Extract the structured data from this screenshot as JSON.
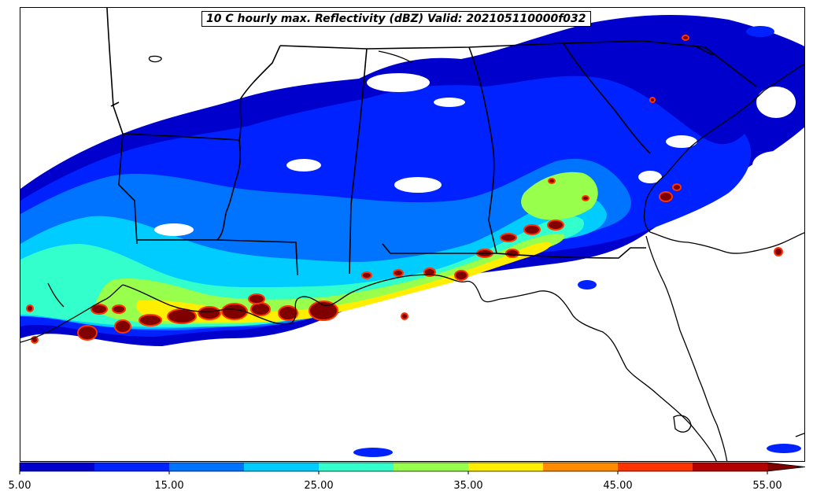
{
  "map": {
    "title": "10 C hourly max. Reflectivity (dBZ) Valid: 202105110000f032",
    "field": "reflectivity",
    "units": "dBZ",
    "region": "Southeastern United States and northern Gulf of Mexico",
    "basemap_features": [
      "coastlines",
      "state-borders"
    ]
  },
  "colorbar": {
    "extend": "max",
    "bins": [
      {
        "from": 5,
        "to": 10,
        "color": "#0000cc"
      },
      {
        "from": 10,
        "to": 15,
        "color": "#0022ff"
      },
      {
        "from": 15,
        "to": 20,
        "color": "#0073ff"
      },
      {
        "from": 20,
        "to": 25,
        "color": "#00ccff"
      },
      {
        "from": 25,
        "to": 30,
        "color": "#33ffcc"
      },
      {
        "from": 30,
        "to": 35,
        "color": "#99ff4d"
      },
      {
        "from": 35,
        "to": 40,
        "color": "#ffee00"
      },
      {
        "from": 40,
        "to": 45,
        "color": "#ff8c00"
      },
      {
        "from": 45,
        "to": 50,
        "color": "#ff3300"
      },
      {
        "from": 50,
        "to": 55,
        "color": "#b30000"
      }
    ],
    "extend_color": "#800000",
    "tick_labels": [
      "5.00",
      "15.00",
      "25.00",
      "35.00",
      "45.00",
      "55.00"
    ]
  }
}
